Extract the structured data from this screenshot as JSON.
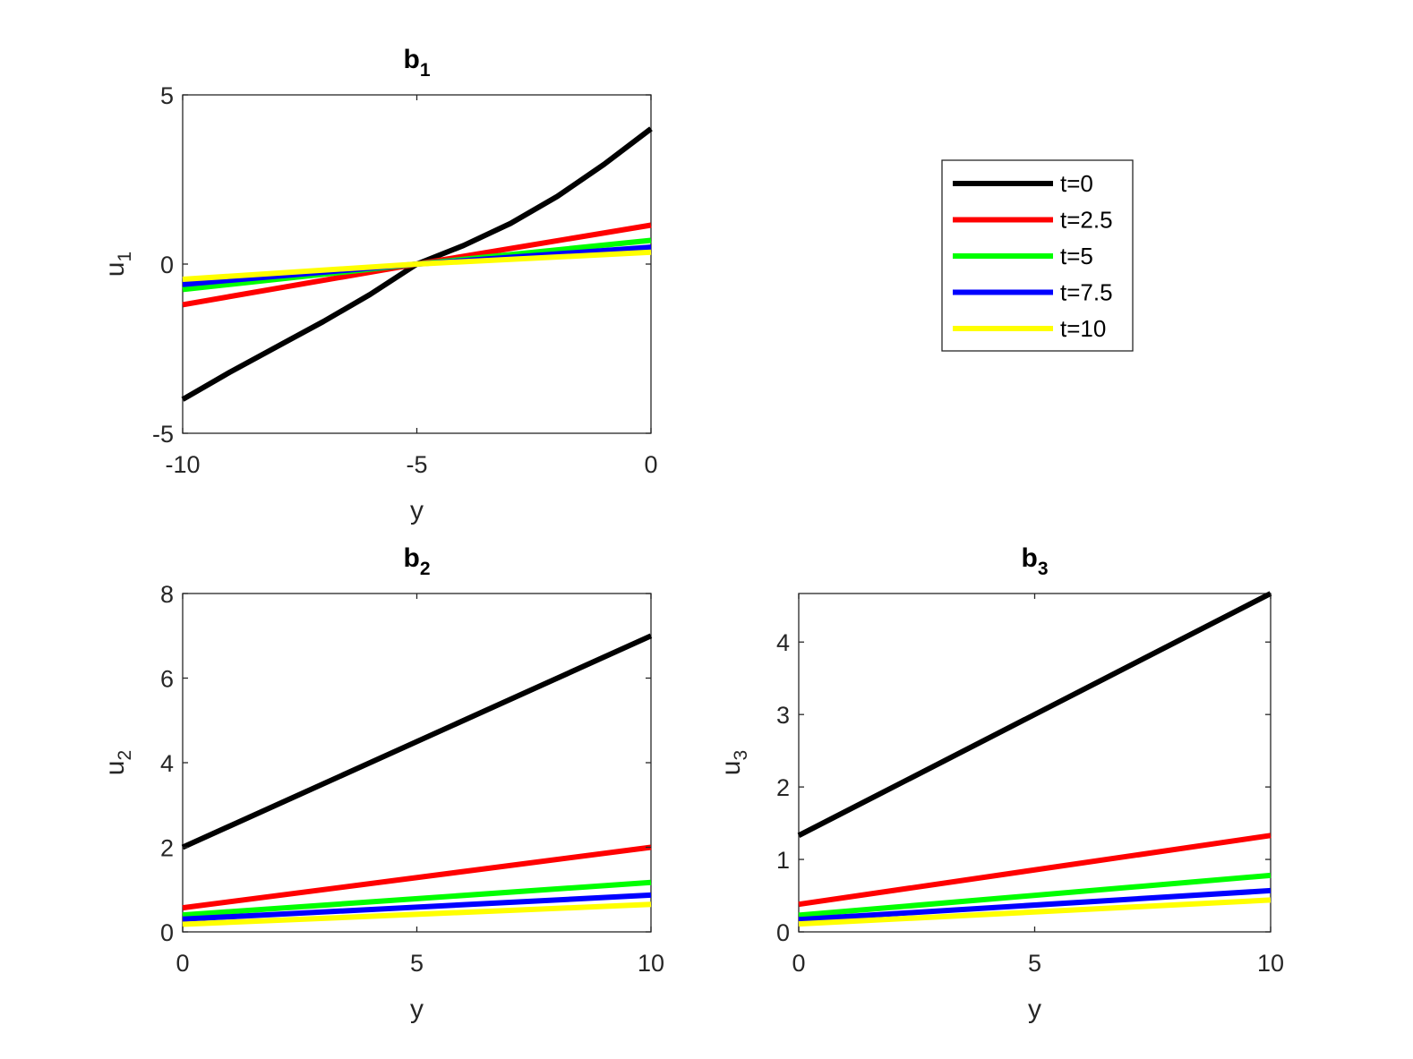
{
  "chart_data": [
    {
      "type": "line",
      "title_main": "b",
      "title_sub": "1",
      "xlabel": "y",
      "ylabel_main": "u",
      "ylabel_sub": "1",
      "xlim": [
        -10,
        0
      ],
      "ylim": [
        -5,
        5
      ],
      "xticks": [
        -10,
        -5,
        0
      ],
      "xtick_labels": [
        "-10",
        "-5",
        "0"
      ],
      "yticks": [
        -5,
        0,
        5
      ],
      "ytick_labels": [
        "-5",
        "0",
        "5"
      ],
      "series": [
        {
          "name": "t=0",
          "color": "#000000",
          "x": [
            -10,
            -9,
            -8,
            -7,
            -6,
            -5,
            -4,
            -3,
            -2,
            -1,
            0
          ],
          "y": [
            -4.0,
            -3.2,
            -2.45,
            -1.7,
            -0.9,
            0.0,
            0.55,
            1.2,
            2.0,
            2.95,
            4.0
          ]
        },
        {
          "name": "t=2.5",
          "color": "#ff0000",
          "x": [
            -10,
            -5,
            0
          ],
          "y": [
            -1.2,
            0.0,
            1.15
          ]
        },
        {
          "name": "t=5",
          "color": "#00ff00",
          "x": [
            -10,
            -5,
            0
          ],
          "y": [
            -0.75,
            0.0,
            0.7
          ]
        },
        {
          "name": "t=7.5",
          "color": "#0000ff",
          "x": [
            -10,
            -5,
            0
          ],
          "y": [
            -0.6,
            0.0,
            0.5
          ]
        },
        {
          "name": "t=10",
          "color": "#ffff00",
          "x": [
            -10,
            -5,
            0
          ],
          "y": [
            -0.45,
            0.0,
            0.35
          ]
        }
      ]
    },
    {
      "type": "line",
      "title_main": "b",
      "title_sub": "2",
      "xlabel": "y",
      "ylabel_main": "u",
      "ylabel_sub": "2",
      "xlim": [
        0,
        10
      ],
      "ylim": [
        0,
        8
      ],
      "xticks": [
        0,
        5,
        10
      ],
      "xtick_labels": [
        "0",
        "5",
        "10"
      ],
      "yticks": [
        0,
        2,
        4,
        6,
        8
      ],
      "ytick_labels": [
        "0",
        "2",
        "4",
        "6",
        "8"
      ],
      "series": [
        {
          "name": "t=0",
          "color": "#000000",
          "x": [
            0,
            10
          ],
          "y": [
            2.0,
            7.0
          ]
        },
        {
          "name": "t=2.5",
          "color": "#ff0000",
          "x": [
            0,
            10
          ],
          "y": [
            0.57,
            2.0
          ]
        },
        {
          "name": "t=5",
          "color": "#00ff00",
          "x": [
            0,
            10
          ],
          "y": [
            0.4,
            1.17
          ]
        },
        {
          "name": "t=7.5",
          "color": "#0000ff",
          "x": [
            0,
            10
          ],
          "y": [
            0.3,
            0.87
          ]
        },
        {
          "name": "t=10",
          "color": "#ffff00",
          "x": [
            0,
            10
          ],
          "y": [
            0.18,
            0.65
          ]
        }
      ]
    },
    {
      "type": "line",
      "title_main": "b",
      "title_sub": "3",
      "xlabel": "y",
      "ylabel_main": "u",
      "ylabel_sub": "3",
      "xlim": [
        0,
        10
      ],
      "ylim": [
        0,
        4.67
      ],
      "xticks": [
        0,
        5,
        10
      ],
      "xtick_labels": [
        "0",
        "5",
        "10"
      ],
      "yticks": [
        0,
        1,
        2,
        3,
        4
      ],
      "ytick_labels": [
        "0",
        "1",
        "2",
        "3",
        "4"
      ],
      "series": [
        {
          "name": "t=0",
          "color": "#000000",
          "x": [
            0,
            10
          ],
          "y": [
            1.33,
            4.67
          ]
        },
        {
          "name": "t=2.5",
          "color": "#ff0000",
          "x": [
            0,
            10
          ],
          "y": [
            0.38,
            1.33
          ]
        },
        {
          "name": "t=5",
          "color": "#00ff00",
          "x": [
            0,
            10
          ],
          "y": [
            0.23,
            0.78
          ]
        },
        {
          "name": "t=7.5",
          "color": "#0000ff",
          "x": [
            0,
            10
          ],
          "y": [
            0.17,
            0.57
          ]
        },
        {
          "name": "t=10",
          "color": "#ffff00",
          "x": [
            0,
            10
          ],
          "y": [
            0.11,
            0.44
          ]
        }
      ]
    }
  ],
  "legend": {
    "placement": "top-right",
    "entries": [
      {
        "label": "t=0",
        "color": "#000000"
      },
      {
        "label": "t=2.5",
        "color": "#ff0000"
      },
      {
        "label": "t=5",
        "color": "#00ff00"
      },
      {
        "label": "t=7.5",
        "color": "#0000ff"
      },
      {
        "label": "t=10",
        "color": "#ffff00"
      }
    ]
  }
}
